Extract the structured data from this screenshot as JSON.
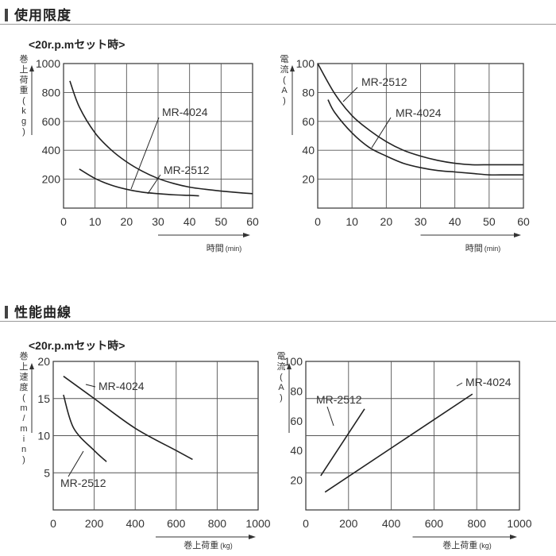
{
  "sections": {
    "usage_title": "使用限度",
    "performance_title": "性能曲線",
    "condition": "<20r.p.mセット時>"
  },
  "chart_data": [
    {
      "type": "line",
      "ylabel": "巻上荷重(kg)",
      "xlabel": "時間",
      "xunit": "(min)",
      "xlim": [
        0,
        60
      ],
      "ylim": [
        0,
        1000
      ],
      "xticks": [
        0,
        10,
        20,
        30,
        40,
        50,
        60
      ],
      "yticks": [
        200,
        400,
        600,
        800,
        1000
      ],
      "grid": true,
      "series": [
        {
          "name": "MR-4024",
          "x": [
            2,
            5,
            10,
            15,
            20,
            25,
            30,
            35,
            40,
            45,
            50,
            55,
            60
          ],
          "y": [
            880,
            700,
            520,
            405,
            320,
            255,
            205,
            170,
            145,
            130,
            118,
            108,
            100
          ]
        },
        {
          "name": "MR-2512",
          "x": [
            5,
            10,
            15,
            20,
            25,
            30,
            35,
            40,
            43
          ],
          "y": [
            270,
            205,
            160,
            130,
            110,
            100,
            92,
            88,
            85
          ]
        }
      ]
    },
    {
      "type": "line",
      "ylabel": "電流(A)",
      "xlabel": "時間",
      "xunit": "(min)",
      "xlim": [
        0,
        60
      ],
      "ylim": [
        0,
        100
      ],
      "xticks": [
        0,
        10,
        20,
        30,
        40,
        50,
        60
      ],
      "yticks": [
        20,
        40,
        60,
        80,
        100
      ],
      "grid": true,
      "series": [
        {
          "name": "MR-2512",
          "x": [
            0,
            5,
            10,
            15,
            20,
            25,
            30,
            35,
            40,
            45,
            50,
            55,
            60
          ],
          "y": [
            100,
            79,
            64,
            54,
            46,
            40,
            36,
            33,
            31,
            30,
            30,
            30,
            30
          ]
        },
        {
          "name": "MR-4024",
          "x": [
            3,
            5,
            10,
            15,
            20,
            25,
            30,
            35,
            40,
            45,
            50,
            55,
            60
          ],
          "y": [
            75,
            66,
            52,
            42,
            36,
            31,
            28,
            26,
            25,
            24,
            23,
            23,
            23
          ]
        }
      ]
    },
    {
      "type": "line",
      "ylabel": "巻上速度(m/min)",
      "xlabel": "巻上荷重",
      "xunit": "(kg)",
      "xlim": [
        0,
        1000
      ],
      "ylim": [
        0,
        20
      ],
      "xticks": [
        0,
        200,
        400,
        600,
        800,
        1000
      ],
      "yticks": [
        5,
        10,
        15,
        20
      ],
      "grid": true,
      "series": [
        {
          "name": "MR-4024",
          "x": [
            50,
            200,
            400,
            600,
            680
          ],
          "y": [
            18,
            15,
            11,
            8,
            6.8
          ]
        },
        {
          "name": "MR-2512",
          "x": [
            50,
            100,
            200,
            260
          ],
          "y": [
            15.5,
            11,
            8,
            6.5
          ]
        }
      ]
    },
    {
      "type": "line",
      "ylabel": "電流(A)",
      "xlabel": "巻上荷重",
      "xunit": "(kg)",
      "xlim": [
        0,
        1000
      ],
      "ylim": [
        0,
        100
      ],
      "xticks": [
        0,
        200,
        400,
        600,
        800,
        1000
      ],
      "yticks": [
        20,
        40,
        60,
        80,
        100
      ],
      "grid": true,
      "series": [
        {
          "name": "MR-2512",
          "x": [
            70,
            275
          ],
          "y": [
            23,
            68
          ]
        },
        {
          "name": "MR-4024",
          "x": [
            90,
            780
          ],
          "y": [
            12,
            78
          ]
        }
      ]
    }
  ]
}
